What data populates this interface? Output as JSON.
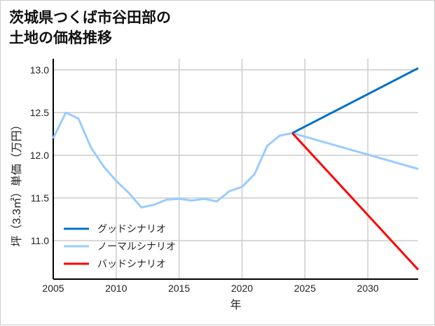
{
  "chart_data": {
    "type": "line",
    "title": "茨城県つくば市谷田部の\n土地の価格推移",
    "xlabel": "年",
    "ylabel": "坪（3.3㎡）単価（万円）",
    "xlim": [
      2005,
      2034
    ],
    "ylim": [
      10.55,
      13.13
    ],
    "xticks": [
      2005,
      2010,
      2015,
      2020,
      2025,
      2030
    ],
    "yticks": [
      11.0,
      11.5,
      12.0,
      12.5,
      13.0
    ],
    "ytick_labels": [
      "11.0",
      "11.5",
      "12.0",
      "12.5",
      "13.0"
    ],
    "grid": true,
    "legend_position": "bottom-left",
    "series": [
      {
        "name": "グッドシナリオ",
        "color": "#0070c8",
        "x": [
          2024,
          2034
        ],
        "y": [
          12.26,
          13.02
        ]
      },
      {
        "name": "ノーマルシナリオ",
        "color": "#99ccff",
        "x": [
          2005,
          2006,
          2007,
          2008,
          2009,
          2010,
          2011,
          2012,
          2013,
          2014,
          2015,
          2016,
          2017,
          2018,
          2019,
          2020,
          2021,
          2022,
          2023,
          2024,
          2034
        ],
        "y": [
          12.2,
          12.5,
          12.43,
          12.09,
          11.87,
          11.7,
          11.56,
          11.39,
          11.42,
          11.48,
          11.49,
          11.47,
          11.49,
          11.46,
          11.58,
          11.63,
          11.78,
          12.11,
          12.23,
          12.26,
          11.84
        ]
      },
      {
        "name": "バッドシナリオ",
        "color": "#ff0000",
        "x": [
          2024,
          2034
        ],
        "y": [
          12.26,
          10.66
        ]
      }
    ]
  }
}
